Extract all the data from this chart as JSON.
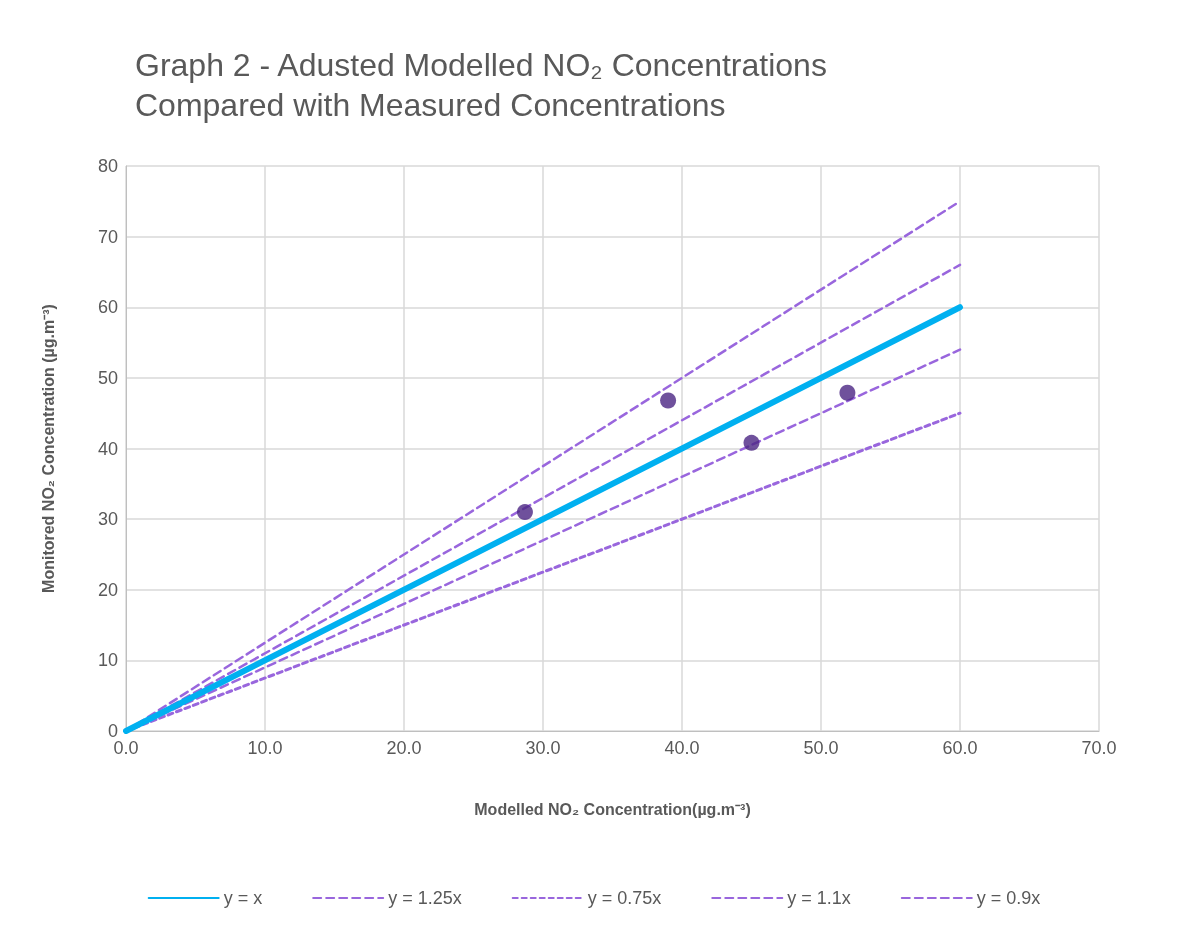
{
  "chart_data": {
    "type": "line",
    "title": "Graph 2 - Adusted Modelled NO₂ Concentrations\nCompared with Measured Concentrations",
    "xlabel": "Modelled NO₂ Concentration(µg.m⁻³)",
    "ylabel": "Monitored NO₂ Concentration (µg.m⁻³)",
    "series": [
      {
        "name": "y = x",
        "color": "#00b0f0",
        "line_style": "solid",
        "x": [
          0,
          60
        ],
        "values": [
          0,
          60
        ]
      },
      {
        "name": "y = 1.25x",
        "color": "#9966dd",
        "line_style": "dashed",
        "x": [
          0,
          60
        ],
        "values": [
          0,
          75
        ]
      },
      {
        "name": "y = 0.75x",
        "color": "#9966dd",
        "line_style": "dotted",
        "x": [
          0,
          60
        ],
        "values": [
          0,
          45
        ]
      },
      {
        "name": "y = 1.1x",
        "color": "#9966dd",
        "line_style": "dashed",
        "x": [
          0,
          60
        ],
        "values": [
          0,
          66
        ]
      },
      {
        "name": "y = 0.9x",
        "color": "#9966dd",
        "line_style": "dashed",
        "x": [
          0,
          60
        ],
        "values": [
          0,
          54
        ]
      },
      {
        "type": "scatter",
        "color": "#4b2683",
        "marker": "circle",
        "x": [
          28.7,
          39.0,
          45.0,
          51.9
        ],
        "values": [
          31.0,
          46.8,
          40.8,
          47.9
        ]
      }
    ],
    "xlim": [
      0,
      70
    ],
    "xticks": [
      {
        "value": 0,
        "label": "0.0"
      },
      {
        "value": 10,
        "label": "10.0"
      },
      {
        "value": 20,
        "label": "20.0"
      },
      {
        "value": 30,
        "label": "30.0"
      },
      {
        "value": 40,
        "label": "40.0"
      },
      {
        "value": 50,
        "label": "50.0"
      },
      {
        "value": 60,
        "label": "60.0"
      },
      {
        "value": 70,
        "label": "70.0"
      }
    ],
    "ylim": [
      0,
      80
    ],
    "yticks": [
      0,
      10,
      20,
      30,
      40,
      50,
      60,
      70,
      80
    ],
    "grid": true,
    "legend": "bottom"
  }
}
